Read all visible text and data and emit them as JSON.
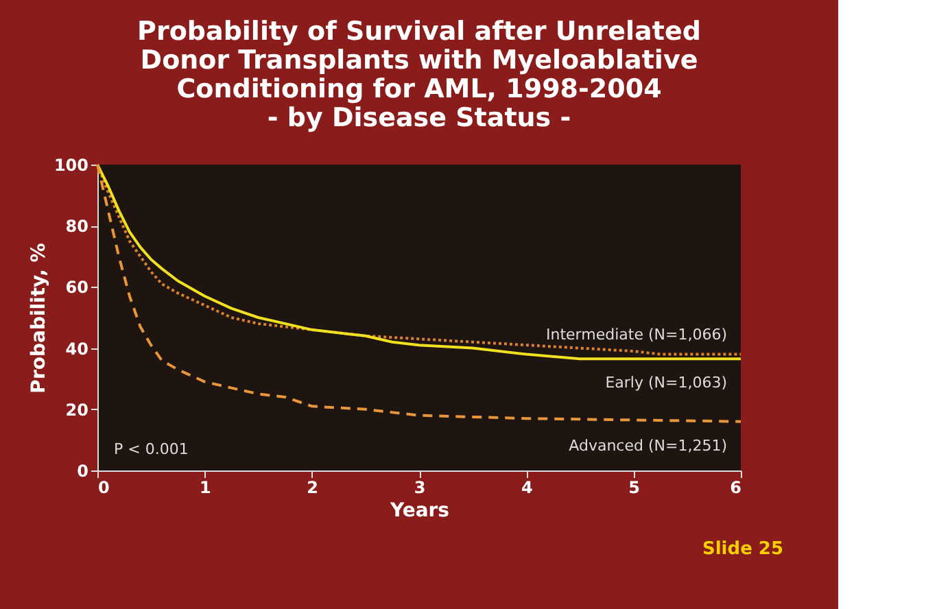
{
  "chart_data": {
    "type": "line",
    "title": "Probability of Survival after Unrelated\nDonor Transplants with Myeloablative\nConditioning for AML, 1998-2004\n- by Disease Status -",
    "xlabel": "Years",
    "ylabel": "Probability, %",
    "xlim": [
      0,
      6
    ],
    "xticks": [
      0,
      1,
      2,
      3,
      4,
      5,
      6
    ],
    "ylim": [
      0,
      100
    ],
    "yticks": [
      0,
      20,
      40,
      60,
      80,
      100
    ],
    "grid": false,
    "legend": false,
    "marker": "none",
    "annotations": [
      "P < 0.001",
      "Slide 25"
    ],
    "series": [
      {
        "name": "Intermediate (N=1,066)",
        "color": "#d9822b",
        "line_style": "dotted",
        "x": [
          0,
          0.1,
          0.2,
          0.3,
          0.4,
          0.5,
          0.6,
          0.75,
          1,
          1.25,
          1.5,
          1.75,
          2,
          2.5,
          3,
          3.5,
          4,
          4.5,
          5,
          5.25,
          6
        ],
        "values": [
          100,
          91,
          83,
          75,
          70,
          65,
          61,
          58,
          54,
          50,
          48,
          47,
          46,
          44,
          43,
          42,
          41,
          40,
          39,
          38,
          38
        ]
      },
      {
        "name": "Early (N=1,063)",
        "color": "#f0e020",
        "line_style": "solid",
        "x": [
          0,
          0.1,
          0.2,
          0.3,
          0.4,
          0.5,
          0.6,
          0.75,
          1,
          1.25,
          1.5,
          1.75,
          2,
          2.5,
          2.75,
          3,
          3.5,
          4,
          4.5,
          5,
          6
        ],
        "values": [
          100,
          93,
          85,
          78,
          73,
          69,
          66,
          62,
          57,
          53,
          50,
          48,
          46,
          44,
          42,
          41,
          40,
          38,
          36.5,
          36.5,
          36.5
        ]
      },
      {
        "name": "Advanced (N=1,251)",
        "color": "#e8963a",
        "line_style": "dashed",
        "x": [
          0,
          0.1,
          0.2,
          0.3,
          0.4,
          0.5,
          0.6,
          0.75,
          1,
          1.25,
          1.5,
          1.75,
          2,
          2.5,
          3,
          3.5,
          4,
          5,
          6
        ],
        "values": [
          100,
          85,
          70,
          57,
          47,
          41,
          36,
          33,
          29,
          27,
          25,
          24,
          21,
          20,
          18,
          17.5,
          17,
          16.5,
          16
        ]
      }
    ]
  }
}
